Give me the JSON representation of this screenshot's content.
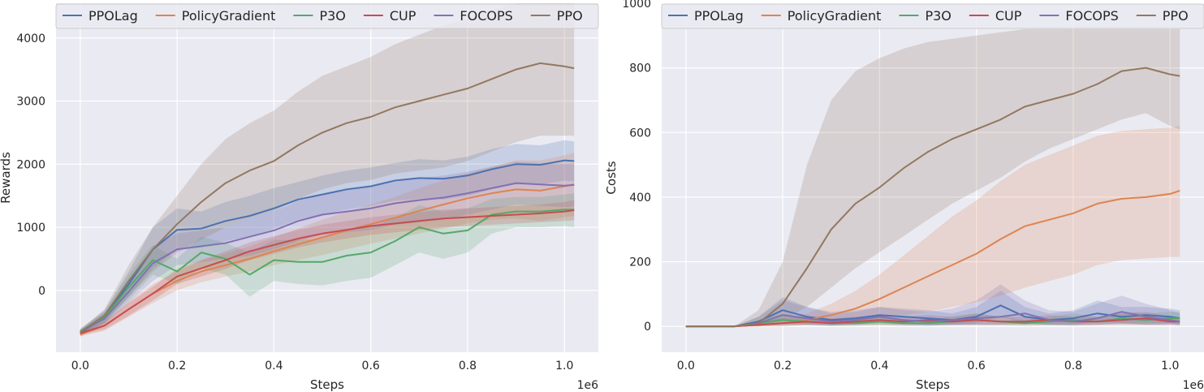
{
  "chart_data": [
    {
      "type": "line",
      "title": "",
      "xlabel": "Steps",
      "ylabel": "Rewards",
      "x_multiplier": "1e6",
      "xlim": [
        -0.05,
        1.07
      ],
      "ylim": [
        -980,
        4550
      ],
      "xticks": [
        0.0,
        0.2,
        0.4,
        0.6,
        0.8,
        1.0
      ],
      "xtick_labels": [
        "0.0",
        "0.2",
        "0.4",
        "0.6",
        "0.8",
        "1.0"
      ],
      "yticks": [
        0,
        1000,
        2000,
        3000,
        4000
      ],
      "ytick_labels": [
        "0",
        "1000",
        "2000",
        "3000",
        "4000"
      ],
      "grid": true,
      "legend_position": "top",
      "x": [
        0.0,
        0.05,
        0.1,
        0.15,
        0.2,
        0.25,
        0.3,
        0.35,
        0.4,
        0.45,
        0.5,
        0.55,
        0.6,
        0.65,
        0.7,
        0.75,
        0.8,
        0.85,
        0.9,
        0.95,
        1.0,
        1.02
      ],
      "series": [
        {
          "name": "PPOLag",
          "color": "#4c72b0",
          "values": [
            -680,
            -420,
            100,
            650,
            960,
            980,
            1100,
            1180,
            1300,
            1440,
            1520,
            1600,
            1650,
            1740,
            1780,
            1770,
            1820,
            1920,
            2000,
            1990,
            2060,
            2050
          ],
          "lower": [
            -730,
            -520,
            -100,
            350,
            650,
            680,
            780,
            860,
            980,
            1120,
            1200,
            1280,
            1340,
            1420,
            1450,
            1440,
            1500,
            1600,
            1680,
            1680,
            1740,
            1730
          ],
          "upper": [
            -630,
            -320,
            300,
            1000,
            1300,
            1250,
            1400,
            1500,
            1620,
            1720,
            1820,
            1900,
            1950,
            2020,
            2080,
            2060,
            2120,
            2240,
            2320,
            2300,
            2380,
            2360
          ]
        },
        {
          "name": "PolicyGradient",
          "color": "#dd8452",
          "values": [
            -700,
            -560,
            -300,
            -50,
            150,
            300,
            400,
            500,
            620,
            730,
            840,
            950,
            1050,
            1150,
            1260,
            1360,
            1460,
            1540,
            1600,
            1580,
            1650,
            1680
          ],
          "lower": [
            -730,
            -640,
            -420,
            -200,
            0,
            130,
            220,
            300,
            400,
            480,
            560,
            650,
            740,
            820,
            900,
            980,
            1060,
            1120,
            1140,
            1100,
            1160,
            1180
          ],
          "upper": [
            -670,
            -480,
            -180,
            100,
            300,
            470,
            580,
            700,
            840,
            980,
            1120,
            1250,
            1360,
            1480,
            1620,
            1740,
            1860,
            1960,
            2060,
            2060,
            2140,
            2180
          ]
        },
        {
          "name": "P3O",
          "color": "#55a868",
          "values": [
            -650,
            -430,
            50,
            480,
            300,
            600,
            500,
            250,
            480,
            450,
            450,
            550,
            600,
            780,
            1000,
            900,
            950,
            1200,
            1250,
            1250,
            1280,
            1280
          ],
          "lower": [
            -700,
            -520,
            -150,
            250,
            100,
            350,
            250,
            -100,
            150,
            100,
            80,
            150,
            200,
            400,
            600,
            500,
            600,
            900,
            1000,
            1000,
            1020,
            1000
          ],
          "upper": [
            -600,
            -340,
            250,
            720,
            500,
            850,
            750,
            600,
            800,
            800,
            820,
            950,
            1000,
            1150,
            1350,
            1250,
            1300,
            1450,
            1480,
            1480,
            1520,
            1540
          ]
        },
        {
          "name": "CUP",
          "color": "#c44e52",
          "values": [
            -680,
            -560,
            -300,
            -50,
            220,
            350,
            480,
            620,
            720,
            820,
            900,
            960,
            1020,
            1060,
            1100,
            1140,
            1160,
            1180,
            1200,
            1220,
            1250,
            1270
          ],
          "lower": [
            -710,
            -620,
            -400,
            -160,
            100,
            220,
            340,
            480,
            580,
            680,
            760,
            820,
            880,
            920,
            960,
            1000,
            1020,
            1040,
            1060,
            1080,
            1100,
            1110
          ],
          "upper": [
            -650,
            -500,
            -200,
            60,
            340,
            480,
            620,
            760,
            860,
            960,
            1040,
            1100,
            1160,
            1200,
            1240,
            1280,
            1300,
            1320,
            1340,
            1360,
            1400,
            1430
          ]
        },
        {
          "name": "FOCOPS",
          "color": "#8172b3",
          "values": [
            -660,
            -450,
            -20,
            430,
            650,
            700,
            750,
            850,
            950,
            1100,
            1200,
            1250,
            1300,
            1380,
            1430,
            1470,
            1540,
            1620,
            1700,
            1680,
            1660,
            1670
          ],
          "lower": [
            -700,
            -540,
            -200,
            150,
            400,
            450,
            500,
            550,
            650,
            780,
            880,
            920,
            960,
            1040,
            1080,
            1120,
            1200,
            1280,
            1360,
            1340,
            1320,
            1330
          ],
          "upper": [
            -620,
            -360,
            160,
            700,
            900,
            950,
            1000,
            1150,
            1250,
            1420,
            1520,
            1580,
            1640,
            1720,
            1780,
            1820,
            1880,
            1960,
            2040,
            2020,
            2000,
            2010
          ]
        },
        {
          "name": "PPO",
          "color": "#937860",
          "values": [
            -660,
            -400,
            150,
            650,
            1050,
            1400,
            1700,
            1900,
            2050,
            2300,
            2500,
            2650,
            2750,
            2900,
            3000,
            3100,
            3200,
            3350,
            3500,
            3600,
            3550,
            3520
          ],
          "lower": [
            -700,
            -500,
            -100,
            300,
            600,
            800,
            1000,
            1150,
            1250,
            1450,
            1600,
            1700,
            1750,
            1850,
            1900,
            1950,
            2050,
            2200,
            2350,
            2450,
            2450,
            2450
          ],
          "upper": [
            -620,
            -300,
            400,
            1000,
            1500,
            2000,
            2400,
            2650,
            2850,
            3150,
            3400,
            3550,
            3700,
            3900,
            4050,
            4200,
            4300,
            4450,
            4550,
            4550,
            4550,
            4550
          ]
        }
      ]
    },
    {
      "type": "line",
      "title": "",
      "xlabel": "Steps",
      "ylabel": "Costs",
      "x_multiplier": "1e6",
      "xlim": [
        -0.05,
        1.07
      ],
      "ylim": [
        -80,
        1000
      ],
      "xticks": [
        0.0,
        0.2,
        0.4,
        0.6,
        0.8,
        1.0
      ],
      "xtick_labels": [
        "0.0",
        "0.2",
        "0.4",
        "0.6",
        "0.8",
        "1.0"
      ],
      "yticks": [
        0,
        200,
        400,
        600,
        800,
        1000
      ],
      "ytick_labels": [
        "0",
        "200",
        "400",
        "600",
        "800",
        "1000"
      ],
      "grid": true,
      "legend_position": "top",
      "x": [
        0.0,
        0.05,
        0.1,
        0.15,
        0.2,
        0.25,
        0.3,
        0.35,
        0.4,
        0.45,
        0.5,
        0.55,
        0.6,
        0.65,
        0.7,
        0.75,
        0.8,
        0.85,
        0.9,
        0.95,
        1.0,
        1.02
      ],
      "series": [
        {
          "name": "PPOLag",
          "color": "#4c72b0",
          "values": [
            0,
            0,
            0,
            15,
            50,
            30,
            20,
            25,
            35,
            30,
            25,
            20,
            30,
            65,
            30,
            20,
            25,
            40,
            30,
            35,
            30,
            25
          ],
          "lower": [
            0,
            0,
            0,
            5,
            20,
            10,
            5,
            10,
            15,
            10,
            5,
            5,
            10,
            30,
            10,
            5,
            5,
            15,
            10,
            10,
            10,
            5
          ],
          "upper": [
            0,
            0,
            0,
            30,
            90,
            60,
            40,
            45,
            60,
            55,
            50,
            40,
            60,
            110,
            60,
            40,
            50,
            80,
            60,
            60,
            55,
            50
          ]
        },
        {
          "name": "PolicyGradient",
          "color": "#dd8452",
          "values": [
            0,
            0,
            0,
            5,
            10,
            20,
            35,
            55,
            85,
            120,
            155,
            190,
            225,
            270,
            310,
            330,
            350,
            380,
            395,
            400,
            410,
            420
          ],
          "lower": [
            0,
            0,
            0,
            0,
            0,
            5,
            10,
            15,
            25,
            35,
            45,
            60,
            75,
            95,
            120,
            140,
            160,
            190,
            205,
            210,
            215,
            215
          ],
          "upper": [
            0,
            0,
            0,
            15,
            25,
            40,
            70,
            110,
            160,
            220,
            280,
            340,
            390,
            450,
            500,
            530,
            560,
            590,
            605,
            610,
            615,
            620
          ]
        },
        {
          "name": "P3O",
          "color": "#55a868",
          "values": [
            0,
            0,
            0,
            10,
            20,
            15,
            10,
            10,
            15,
            10,
            10,
            15,
            20,
            15,
            10,
            15,
            20,
            15,
            25,
            20,
            25,
            25
          ],
          "lower": [
            0,
            0,
            0,
            2,
            5,
            5,
            2,
            2,
            5,
            2,
            2,
            5,
            5,
            5,
            2,
            5,
            5,
            5,
            8,
            5,
            8,
            8
          ],
          "upper": [
            0,
            0,
            0,
            20,
            40,
            30,
            20,
            20,
            30,
            20,
            20,
            30,
            40,
            30,
            20,
            30,
            40,
            30,
            45,
            40,
            45,
            45
          ]
        },
        {
          "name": "CUP",
          "color": "#c44e52",
          "values": [
            0,
            0,
            0,
            5,
            10,
            15,
            10,
            15,
            20,
            15,
            20,
            15,
            20,
            15,
            15,
            20,
            15,
            15,
            20,
            25,
            15,
            15
          ],
          "lower": [
            0,
            0,
            0,
            0,
            2,
            5,
            2,
            5,
            5,
            5,
            5,
            5,
            5,
            5,
            5,
            5,
            5,
            5,
            5,
            5,
            5,
            5
          ],
          "upper": [
            0,
            0,
            0,
            15,
            25,
            30,
            25,
            30,
            35,
            30,
            35,
            30,
            40,
            30,
            30,
            35,
            30,
            30,
            40,
            45,
            30,
            30
          ]
        },
        {
          "name": "FOCOPS",
          "color": "#8172b3",
          "values": [
            0,
            0,
            0,
            10,
            35,
            25,
            15,
            20,
            30,
            20,
            15,
            20,
            25,
            30,
            40,
            20,
            15,
            25,
            45,
            30,
            20,
            15
          ],
          "lower": [
            0,
            0,
            0,
            2,
            10,
            5,
            2,
            5,
            10,
            5,
            2,
            5,
            5,
            5,
            10,
            5,
            2,
            5,
            10,
            5,
            5,
            2
          ],
          "upper": [
            0,
            0,
            0,
            30,
            80,
            60,
            45,
            50,
            60,
            50,
            45,
            55,
            80,
            130,
            80,
            50,
            45,
            70,
            95,
            70,
            50,
            40
          ]
        },
        {
          "name": "PPO",
          "color": "#937860",
          "values": [
            0,
            0,
            0,
            10,
            70,
            180,
            300,
            380,
            430,
            490,
            540,
            580,
            610,
            640,
            680,
            700,
            720,
            750,
            790,
            800,
            780,
            775
          ],
          "lower": [
            0,
            0,
            0,
            0,
            20,
            60,
            120,
            180,
            230,
            280,
            330,
            380,
            420,
            460,
            510,
            550,
            580,
            610,
            640,
            660,
            620,
            610
          ],
          "upper": [
            0,
            0,
            0,
            50,
            200,
            500,
            700,
            790,
            830,
            860,
            880,
            890,
            900,
            910,
            920,
            920,
            920,
            920,
            920,
            920,
            920,
            920
          ]
        }
      ]
    }
  ]
}
